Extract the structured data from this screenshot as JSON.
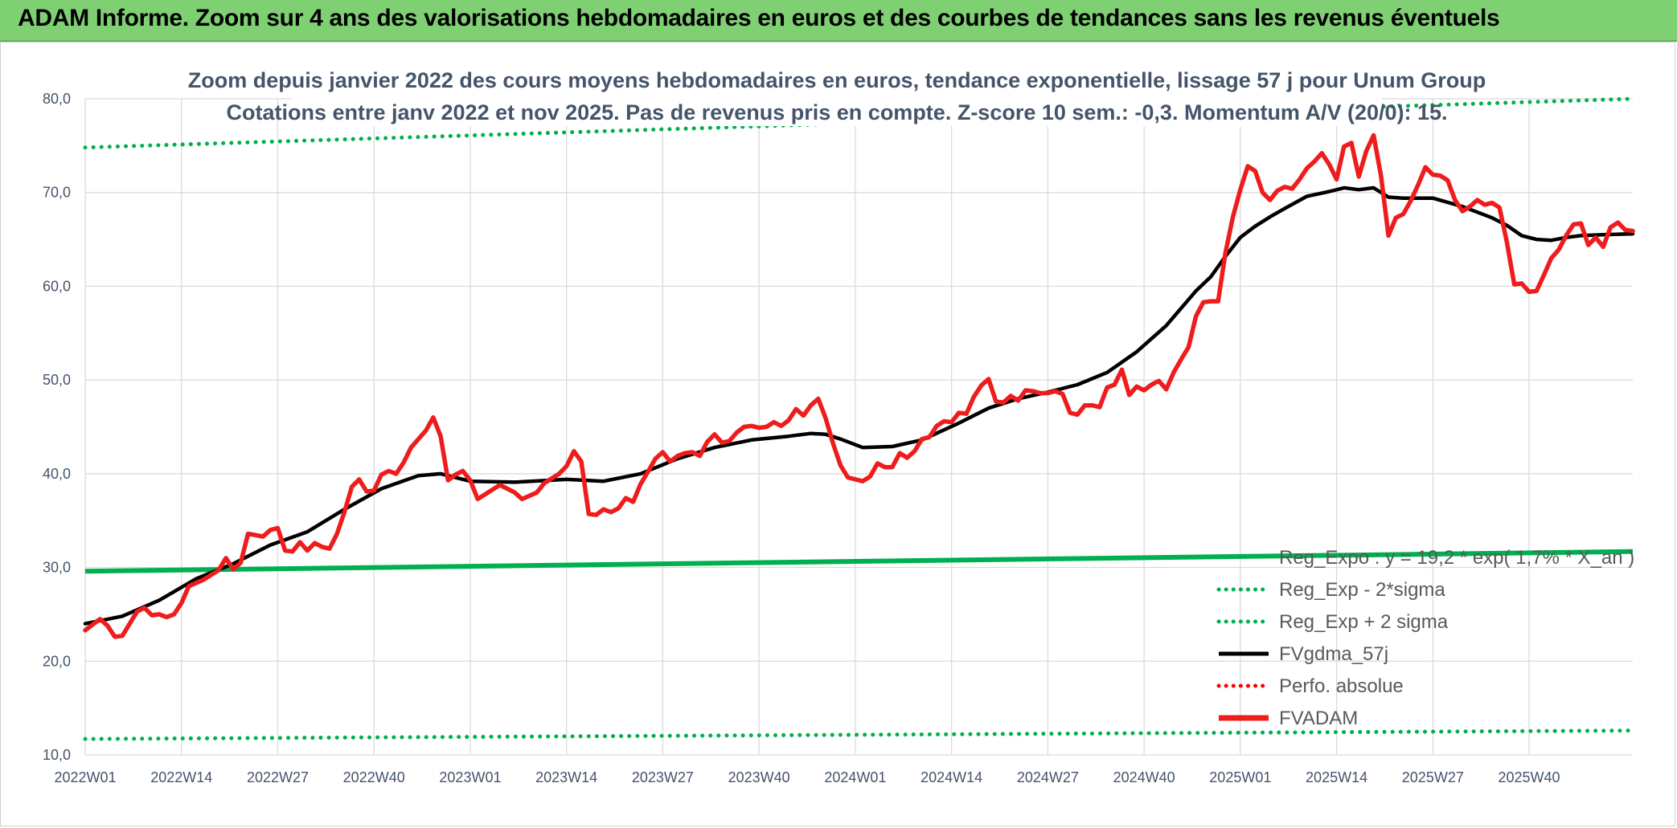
{
  "header": {
    "title": "ADAM Informe. Zoom sur 4 ans des valorisations hebdomadaires en euros et des courbes de tendances sans les revenus éventuels"
  },
  "chart_data": {
    "type": "line",
    "title_line1": "Zoom depuis janvier 2022 des cours moyens hebdomadaires en euros, tendance exponentielle, lissage 57 j pour Unum Group",
    "title_line2": "Cotations entre janv 2022 et nov 2025. Pas de revenus pris en compte. Z-score 10 sem.: -0,3. Momentum A/V (20/0): 15.",
    "xlabel": "",
    "ylabel": "",
    "ylim": [
      10,
      80
    ],
    "yticks": [
      "10,0",
      "20,0",
      "30,0",
      "40,0",
      "50,0",
      "60,0",
      "70,0",
      "80,0"
    ],
    "x_tick_labels": [
      "2022W01",
      "2022W14",
      "2022W27",
      "2022W40",
      "2023W01",
      "2023W14",
      "2023W27",
      "2023W40",
      "2024W01",
      "2024W14",
      "2024W27",
      "2024W40",
      "2025W01",
      "2025W14",
      "2025W27",
      "2025W40"
    ],
    "x_range_weeks": [
      0,
      205
    ],
    "grid": "vertical and horizontal",
    "legend_position": "bottom-right",
    "series": [
      {
        "name": "FVADAM",
        "color": "#ee1c1c",
        "style": "solid-thick",
        "points": [
          [
            0,
            23.3
          ],
          [
            2,
            24.5
          ],
          [
            3,
            23.8
          ],
          [
            4,
            22.6
          ],
          [
            5,
            22.7
          ],
          [
            7,
            25.3
          ],
          [
            8,
            25.7
          ],
          [
            9,
            24.9
          ],
          [
            10,
            25.0
          ],
          [
            11,
            24.7
          ],
          [
            12,
            25.0
          ],
          [
            13,
            26.2
          ],
          [
            14,
            28.0
          ],
          [
            16,
            28.7
          ],
          [
            18,
            29.7
          ],
          [
            19,
            31.0
          ],
          [
            20,
            29.8
          ],
          [
            21,
            30.5
          ],
          [
            22,
            33.6
          ],
          [
            24,
            33.3
          ],
          [
            25,
            34.0
          ],
          [
            26,
            34.2
          ],
          [
            27,
            31.8
          ],
          [
            28,
            31.7
          ],
          [
            29,
            32.7
          ],
          [
            30,
            31.8
          ],
          [
            31,
            32.6
          ],
          [
            32,
            32.2
          ],
          [
            33,
            32.0
          ],
          [
            34,
            33.6
          ],
          [
            35,
            35.9
          ],
          [
            36,
            38.6
          ],
          [
            37,
            39.4
          ],
          [
            38,
            38.1
          ],
          [
            39,
            38.2
          ],
          [
            40,
            39.9
          ],
          [
            41,
            40.3
          ],
          [
            42,
            40.0
          ],
          [
            43,
            41.2
          ],
          [
            44,
            42.8
          ],
          [
            46,
            44.6
          ],
          [
            47,
            46.0
          ],
          [
            48,
            44.0
          ],
          [
            49,
            39.3
          ],
          [
            50,
            39.9
          ],
          [
            51,
            40.3
          ],
          [
            52,
            39.3
          ],
          [
            53,
            37.3
          ],
          [
            55,
            38.3
          ],
          [
            56,
            38.8
          ],
          [
            57,
            38.4
          ],
          [
            58,
            38.0
          ],
          [
            59,
            37.3
          ],
          [
            61,
            38.0
          ],
          [
            62,
            39.0
          ],
          [
            64,
            40.0
          ],
          [
            65,
            40.8
          ],
          [
            66,
            42.4
          ],
          [
            67,
            41.3
          ],
          [
            68,
            35.7
          ],
          [
            69,
            35.6
          ],
          [
            70,
            36.2
          ],
          [
            71,
            35.9
          ],
          [
            72,
            36.3
          ],
          [
            73,
            37.4
          ],
          [
            74,
            37.0
          ],
          [
            75,
            38.9
          ],
          [
            76,
            40.2
          ],
          [
            77,
            41.6
          ],
          [
            78,
            42.3
          ],
          [
            79,
            41.3
          ],
          [
            80,
            41.9
          ],
          [
            81,
            42.2
          ],
          [
            82,
            42.3
          ],
          [
            83,
            41.9
          ],
          [
            84,
            43.4
          ],
          [
            85,
            44.2
          ],
          [
            86,
            43.3
          ],
          [
            87,
            43.5
          ],
          [
            88,
            44.4
          ],
          [
            89,
            45.0
          ],
          [
            90,
            45.1
          ],
          [
            91,
            44.9
          ],
          [
            92,
            45.0
          ],
          [
            93,
            45.5
          ],
          [
            94,
            45.1
          ],
          [
            95,
            45.7
          ],
          [
            96,
            46.9
          ],
          [
            97,
            46.2
          ],
          [
            98,
            47.3
          ],
          [
            99,
            48.0
          ],
          [
            100,
            45.9
          ],
          [
            101,
            43.2
          ],
          [
            102,
            40.9
          ],
          [
            103,
            39.6
          ],
          [
            104,
            39.4
          ],
          [
            105,
            39.2
          ],
          [
            106,
            39.7
          ],
          [
            107,
            41.1
          ],
          [
            108,
            40.7
          ],
          [
            109,
            40.7
          ],
          [
            110,
            42.2
          ],
          [
            111,
            41.7
          ],
          [
            112,
            42.4
          ],
          [
            113,
            43.7
          ],
          [
            114,
            43.9
          ],
          [
            115,
            45.1
          ],
          [
            116,
            45.6
          ],
          [
            117,
            45.5
          ],
          [
            118,
            46.5
          ],
          [
            119,
            46.4
          ],
          [
            120,
            48.2
          ],
          [
            121,
            49.4
          ],
          [
            122,
            50.1
          ],
          [
            123,
            47.7
          ],
          [
            124,
            47.6
          ],
          [
            125,
            48.3
          ],
          [
            126,
            47.8
          ],
          [
            127,
            48.9
          ],
          [
            128,
            48.8
          ],
          [
            129,
            48.6
          ],
          [
            130,
            48.6
          ],
          [
            131,
            48.8
          ],
          [
            132,
            48.5
          ],
          [
            133,
            46.5
          ],
          [
            134,
            46.3
          ],
          [
            135,
            47.3
          ],
          [
            136,
            47.3
          ],
          [
            137,
            47.1
          ],
          [
            138,
            49.2
          ],
          [
            139,
            49.5
          ],
          [
            140,
            51.1
          ],
          [
            141,
            48.4
          ],
          [
            142,
            49.3
          ],
          [
            143,
            48.9
          ],
          [
            144,
            49.5
          ],
          [
            145,
            49.9
          ],
          [
            146,
            49.0
          ],
          [
            147,
            50.8
          ],
          [
            148,
            52.2
          ],
          [
            149,
            53.5
          ],
          [
            150,
            56.8
          ],
          [
            151,
            58.3
          ],
          [
            152,
            58.4
          ],
          [
            153,
            58.4
          ],
          [
            154,
            63.6
          ],
          [
            155,
            67.4
          ],
          [
            156,
            70.3
          ],
          [
            157,
            72.8
          ],
          [
            158,
            72.3
          ],
          [
            159,
            70.0
          ],
          [
            160,
            69.2
          ],
          [
            161,
            70.2
          ],
          [
            162,
            70.6
          ],
          [
            163,
            70.4
          ],
          [
            164,
            71.4
          ],
          [
            165,
            72.6
          ],
          [
            166,
            73.3
          ],
          [
            167,
            74.2
          ],
          [
            168,
            73.0
          ],
          [
            169,
            71.4
          ],
          [
            170,
            74.9
          ],
          [
            171,
            75.3
          ],
          [
            172,
            71.7
          ],
          [
            173,
            74.4
          ],
          [
            174,
            76.1
          ],
          [
            175,
            71.8
          ],
          [
            176,
            65.4
          ],
          [
            177,
            67.3
          ],
          [
            178,
            67.7
          ],
          [
            179,
            69.1
          ],
          [
            180,
            70.8
          ],
          [
            181,
            72.7
          ],
          [
            182,
            71.9
          ],
          [
            183,
            71.8
          ],
          [
            184,
            71.3
          ],
          [
            185,
            69.2
          ],
          [
            186,
            68.0
          ],
          [
            187,
            68.5
          ],
          [
            188,
            69.2
          ],
          [
            189,
            68.7
          ],
          [
            190,
            68.9
          ],
          [
            191,
            68.4
          ],
          [
            192,
            64.7
          ],
          [
            193,
            60.2
          ],
          [
            194,
            60.3
          ],
          [
            195,
            59.4
          ],
          [
            196,
            59.5
          ],
          [
            197,
            61.2
          ],
          [
            198,
            63.0
          ],
          [
            199,
            63.9
          ],
          [
            200,
            65.4
          ],
          [
            201,
            66.6
          ],
          [
            202,
            66.7
          ],
          [
            203,
            64.4
          ],
          [
            204,
            65.2
          ],
          [
            205,
            64.2
          ],
          [
            206,
            66.3
          ],
          [
            207,
            66.8
          ],
          [
            208,
            66.0
          ],
          [
            209,
            65.9
          ]
        ]
      },
      {
        "name": "FVgdma_57j",
        "color": "#000000",
        "style": "solid",
        "points": [
          [
            0,
            24.0
          ],
          [
            5,
            24.8
          ],
          [
            10,
            26.5
          ],
          [
            15,
            28.8
          ],
          [
            20,
            30.4
          ],
          [
            25,
            32.4
          ],
          [
            30,
            33.8
          ],
          [
            35,
            36.2
          ],
          [
            40,
            38.4
          ],
          [
            45,
            39.8
          ],
          [
            48,
            40.0
          ],
          [
            52,
            39.2
          ],
          [
            58,
            39.1
          ],
          [
            65,
            39.4
          ],
          [
            70,
            39.2
          ],
          [
            75,
            40.0
          ],
          [
            80,
            41.6
          ],
          [
            85,
            42.8
          ],
          [
            90,
            43.6
          ],
          [
            95,
            44.0
          ],
          [
            98,
            44.3
          ],
          [
            100,
            44.2
          ],
          [
            102,
            43.7
          ],
          [
            105,
            42.8
          ],
          [
            109,
            42.9
          ],
          [
            113,
            43.6
          ],
          [
            118,
            45.4
          ],
          [
            122,
            47.0
          ],
          [
            126,
            48.0
          ],
          [
            130,
            48.7
          ],
          [
            134,
            49.5
          ],
          [
            138,
            50.8
          ],
          [
            142,
            53.0
          ],
          [
            146,
            55.8
          ],
          [
            150,
            59.5
          ],
          [
            152,
            61.0
          ],
          [
            154,
            63.2
          ],
          [
            156,
            65.2
          ],
          [
            158,
            66.4
          ],
          [
            160,
            67.4
          ],
          [
            162,
            68.3
          ],
          [
            165,
            69.6
          ],
          [
            168,
            70.1
          ],
          [
            170,
            70.5
          ],
          [
            172,
            70.3
          ],
          [
            174,
            70.5
          ],
          [
            176,
            69.5
          ],
          [
            178,
            69.4
          ],
          [
            182,
            69.4
          ],
          [
            186,
            68.5
          ],
          [
            190,
            67.3
          ],
          [
            192,
            66.5
          ],
          [
            194,
            65.4
          ],
          [
            196,
            65.0
          ],
          [
            198,
            64.9
          ],
          [
            200,
            65.2
          ],
          [
            202,
            65.4
          ],
          [
            205,
            65.5
          ],
          [
            209,
            65.6
          ]
        ]
      },
      {
        "name": "Reg_Expo : y = 19,2 * exp( 1,7% * X_an )",
        "color": "#00b050",
        "style": "solid-thick",
        "start": [
          0,
          29.6
        ],
        "end": [
          209,
          31.7
        ]
      },
      {
        "name": "Reg_Exp - 2*sigma",
        "color": "#00b050",
        "style": "dotted",
        "start": [
          0,
          11.7
        ],
        "end": [
          209,
          12.6
        ]
      },
      {
        "name": "Reg_Exp + 2 sigma",
        "color": "#00b050",
        "style": "dotted",
        "start": [
          0,
          74.8
        ],
        "end": [
          209,
          80.0
        ]
      },
      {
        "name": "Perfo. absolue",
        "color": "#ff0000",
        "style": "dotted",
        "points": []
      }
    ],
    "legend": [
      {
        "label": "Reg_Expo : y = 19,2 * exp( 1,7% * X_an )",
        "color": "#00b050",
        "style": "none"
      },
      {
        "label": "Reg_Exp - 2*sigma",
        "color": "#00b050",
        "style": "dotted"
      },
      {
        "label": "Reg_Exp + 2 sigma",
        "color": "#00b050",
        "style": "dotted"
      },
      {
        "label": "FVgdma_57j",
        "color": "#000000",
        "style": "solid"
      },
      {
        "label": "Perfo. absolue",
        "color": "#ff0000",
        "style": "dotted"
      },
      {
        "label": "FVADAM",
        "color": "#ee1c1c",
        "style": "solid-thick"
      }
    ]
  }
}
